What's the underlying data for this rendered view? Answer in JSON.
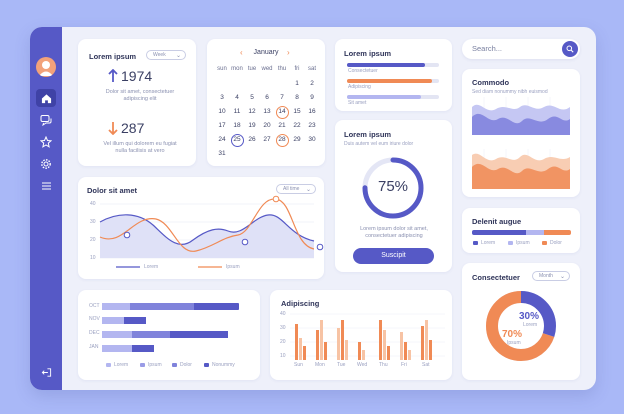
{
  "colors": {
    "primary": "#5659c6",
    "accent": "#f08a55",
    "light_primary": "#b3b6f0",
    "light_accent": "#f7c3a4",
    "background": "#a9b8f7"
  },
  "sidebar": {
    "items": [
      {
        "icon": "home-icon",
        "active": true
      },
      {
        "icon": "chat-icon",
        "active": false
      },
      {
        "icon": "star-icon",
        "active": false
      },
      {
        "icon": "gear-icon",
        "active": false
      },
      {
        "icon": "menu-icon",
        "active": false
      }
    ],
    "logout_icon": "logout-icon",
    "avatar_icon": "avatar-icon"
  },
  "stats_card": {
    "title": "Lorem ipsum",
    "dropdown": "Week",
    "stats": [
      {
        "value": "1974",
        "direction": "up",
        "text": "Dolor sit amet, consectetuer adipiscing elit"
      },
      {
        "value": "287",
        "direction": "down",
        "text": "Vel illum qui dolorem eu fugiat nulla facilisis at vero"
      }
    ]
  },
  "calendar": {
    "month": "January",
    "weekdays": [
      "sun",
      "mon",
      "tue",
      "wed",
      "thu",
      "fri",
      "sat"
    ],
    "weeks": [
      [
        "",
        "",
        "",
        "",
        "",
        "1",
        "2"
      ],
      [
        "3",
        "4",
        "5",
        "6",
        "7",
        "8",
        "9"
      ],
      [
        "10",
        "11",
        "12",
        "13",
        "14",
        "15",
        "16"
      ],
      [
        "17",
        "18",
        "19",
        "20",
        "21",
        "22",
        "23"
      ],
      [
        "24",
        "25",
        "26",
        "27",
        "28",
        "29",
        "30"
      ],
      [
        "31",
        "",
        "",
        "",
        "",
        "",
        ""
      ]
    ],
    "highlighted_orange": [
      "14",
      "28"
    ],
    "highlighted_blue": [
      "25"
    ]
  },
  "progress_card": {
    "title": "Lorem ipsum",
    "bars": [
      {
        "label": "Consectetuer",
        "value": 0.85,
        "color": "#5659c6"
      },
      {
        "label": "Adipiscing",
        "value": 0.92,
        "color": "#f08a55"
      },
      {
        "label": "Sit amet",
        "value": 0.8,
        "color": "#b3b6f0"
      }
    ]
  },
  "gauge_card": {
    "title": "Lorem ipsum",
    "subtitle": "Duis autem vel eum iriure dolor",
    "value_label": "75%",
    "value": 0.75,
    "text": "Lorem ipsum dolor sit amet, consectetuer adipiscing",
    "button": "Suscipit"
  },
  "line_chart": {
    "title": "Dolor sit amet",
    "dropdown": "All time",
    "y_ticks": [
      "40",
      "30",
      "20",
      "10"
    ],
    "legend": [
      "Lorem",
      "Ipsum"
    ]
  },
  "hbar_chart": {
    "categories": [
      "OCT",
      "NOV",
      "DEC",
      "JAN"
    ],
    "legend": [
      "Lorem",
      "Ipsum",
      "Dolor",
      "Nonummy"
    ]
  },
  "vbar_chart": {
    "title": "Adipiscing",
    "y_ticks": [
      "40",
      "30",
      "20",
      "10"
    ],
    "days": [
      "Sun",
      "Mon",
      "Tue",
      "Wed",
      "Thu",
      "Fri",
      "Sat"
    ]
  },
  "search": {
    "placeholder": "Search...",
    "icon": "search-icon"
  },
  "commodo_card": {
    "title": "Commodo",
    "subtitle": "Sed diam nonummy nibh euismod"
  },
  "delenit_card": {
    "title": "Delenit augue",
    "legend": [
      "Lorem",
      "Ipsum",
      "Dolor"
    ],
    "segments": [
      0.55,
      0.18,
      0.27
    ]
  },
  "donut_card": {
    "title": "Consectetuer",
    "dropdown": "Month",
    "segments": [
      {
        "label": "Lorem",
        "value_label": "30%",
        "value": 0.3,
        "color": "#5659c6"
      },
      {
        "label": "Ipsum",
        "value_label": "70%",
        "value": 0.7,
        "color": "#f08a55"
      }
    ]
  }
}
